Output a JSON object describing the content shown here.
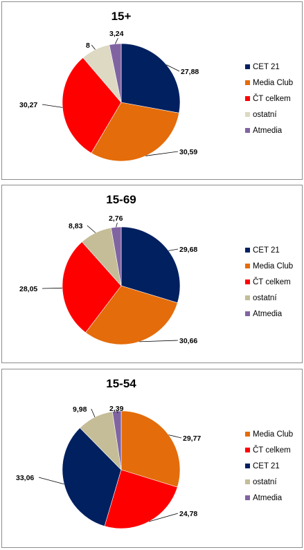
{
  "chart_data": [
    {
      "type": "pie",
      "title": "15+",
      "slices": [
        {
          "label": "CET 21",
          "value": 27.88,
          "value_label": "27,88",
          "color": "#002060"
        },
        {
          "label": "Media Club",
          "value": 30.59,
          "value_label": "30,59",
          "color": "#E46C0A"
        },
        {
          "label": "ČT celkem",
          "value": 30.27,
          "value_label": "30,27",
          "color": "#FF0000"
        },
        {
          "label": "ostatní",
          "value": 8,
          "value_label": "8",
          "color": "#DDD9C3"
        },
        {
          "label": "Atmedia",
          "value": 3.24,
          "value_label": "3,24",
          "color": "#8064A2"
        }
      ],
      "legend": [
        "CET 21",
        "Media Club",
        "ČT celkem",
        "ostatní",
        "Atmedia"
      ],
      "legend_position": "right"
    },
    {
      "type": "pie",
      "title": "15-69",
      "slices": [
        {
          "label": "CET 21",
          "value": 29.68,
          "value_label": "29,68",
          "color": "#002060"
        },
        {
          "label": "Media Club",
          "value": 30.66,
          "value_label": "30,66",
          "color": "#E46C0A"
        },
        {
          "label": "ČT celkem",
          "value": 28.05,
          "value_label": "28,05",
          "color": "#FF0000"
        },
        {
          "label": "ostatní",
          "value": 8.83,
          "value_label": "8,83",
          "color": "#C4BD97"
        },
        {
          "label": "Atmedia",
          "value": 2.76,
          "value_label": "2,76",
          "color": "#8064A2"
        }
      ],
      "legend": [
        "CET 21",
        "Media Club",
        "ČT celkem",
        "ostatní",
        "Atmedia"
      ],
      "legend_position": "right"
    },
    {
      "type": "pie",
      "title": "15-54",
      "slices": [
        {
          "label": "Media Club",
          "value": 29.77,
          "value_label": "29,77",
          "color": "#E46C0A"
        },
        {
          "label": "ČT celkem",
          "value": 24.78,
          "value_label": "24,78",
          "color": "#FF0000"
        },
        {
          "label": "CET 21",
          "value": 33.06,
          "value_label": "33,06",
          "color": "#002060"
        },
        {
          "label": "ostatní",
          "value": 9.98,
          "value_label": "9,98",
          "color": "#C4BD97"
        },
        {
          "label": "Atmedia",
          "value": 2.39,
          "value_label": "2,39",
          "color": "#8064A2"
        }
      ],
      "legend": [
        "Media Club",
        "ČT celkem",
        "CET 21",
        "ostatní",
        "Atmedia"
      ],
      "legend_position": "right"
    }
  ]
}
